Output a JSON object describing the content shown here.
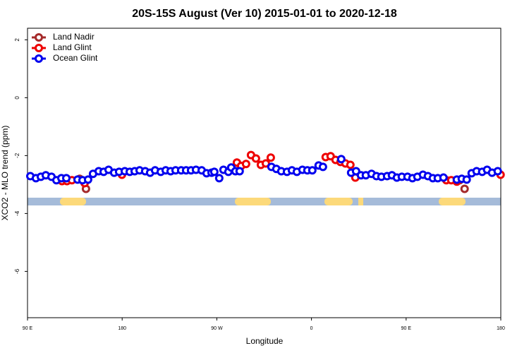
{
  "chart_data": {
    "type": "scatter",
    "title": "20S-15S August (Ver 10)   2015-01-01 to 2020-12-18",
    "x_label": "Longitude",
    "y_label": "XCO2 - MLO trend (ppm)",
    "xlim": [
      90,
      540
    ],
    "ylim": [
      -7.6,
      2.4
    ],
    "xticks": [
      {
        "value": 90,
        "label": "90 E"
      },
      180,
      {
        "value": 270,
        "label": "90 W"
      },
      {
        "value": 360,
        "label": "0"
      },
      {
        "value": 450,
        "label": "90 E"
      },
      {
        "value": 540,
        "label": "180"
      }
    ],
    "yticks": [
      2,
      0,
      -2,
      -4,
      -6
    ],
    "legend": "top-left",
    "series": [
      {
        "name": "Land Nadir",
        "color": "#a52a2a",
        "x": [
          139.6,
          145.6,
          500.9,
          505.6
        ],
        "values": [
          -2.8,
          -3.15,
          -2.85,
          -3.15
        ]
      },
      {
        "name": "Land Glint",
        "color": "#ee0000",
        "x": [
          122.8,
          127.5,
          132.2,
          144.3,
          179.8,
          289.1,
          293.1,
          297.8,
          302.5,
          307.2,
          311.9,
          316.6,
          321.3,
          373.5,
          378.2,
          382.9,
          387.6,
          392.3,
          397.0,
          401.7,
          488.2,
          492.9,
          498.2,
          539.8
        ],
        "values": [
          -2.88,
          -2.88,
          -2.85,
          -2.95,
          -2.66,
          -2.24,
          -2.36,
          -2.29,
          -1.98,
          -2.1,
          -2.32,
          -2.27,
          -2.07,
          -2.05,
          -2.02,
          -2.15,
          -2.22,
          -2.27,
          -2.32,
          -2.76,
          -2.85,
          -2.85,
          -2.9,
          -2.66
        ]
      },
      {
        "name": "Ocean Glint",
        "color": "#0000ee",
        "x": [
          92.7,
          98.0,
          102.7,
          107.4,
          112.8,
          117.5,
          122.2,
          126.9,
          137.6,
          142.3,
          147.6,
          152.3,
          157.7,
          162.4,
          167.1,
          172.4,
          177.1,
          182.5,
          187.2,
          191.9,
          196.6,
          201.9,
          206.6,
          211.3,
          216.7,
          221.4,
          226.1,
          230.8,
          236.1,
          240.8,
          245.5,
          250.2,
          255.6,
          260.3,
          265.0,
          267.6,
          272.3,
          276.3,
          281.0,
          283.7,
          287.7,
          291.7,
          321.9,
          326.6,
          331.3,
          336.7,
          341.4,
          346.1,
          351.4,
          356.1,
          360.8,
          366.8,
          370.9,
          388.3,
          397.7,
          402.4,
          407.1,
          411.7,
          417.1,
          421.8,
          426.5,
          431.9,
          436.5,
          441.2,
          445.9,
          451.3,
          456.0,
          460.7,
          466.0,
          470.7,
          475.4,
          480.1,
          485.5,
          498.2,
          502.9,
          507.6,
          512.3,
          517.0,
          522.3,
          527.0,
          531.7,
          537.1
        ],
        "values": [
          -2.71,
          -2.78,
          -2.73,
          -2.68,
          -2.73,
          -2.85,
          -2.78,
          -2.78,
          -2.83,
          -2.85,
          -2.83,
          -2.63,
          -2.54,
          -2.56,
          -2.49,
          -2.59,
          -2.56,
          -2.54,
          -2.56,
          -2.54,
          -2.51,
          -2.54,
          -2.59,
          -2.51,
          -2.56,
          -2.51,
          -2.54,
          -2.51,
          -2.51,
          -2.51,
          -2.51,
          -2.49,
          -2.51,
          -2.61,
          -2.59,
          -2.56,
          -2.78,
          -2.49,
          -2.56,
          -2.41,
          -2.54,
          -2.54,
          -2.39,
          -2.46,
          -2.54,
          -2.56,
          -2.51,
          -2.56,
          -2.49,
          -2.51,
          -2.51,
          -2.34,
          -2.39,
          -2.12,
          -2.59,
          -2.54,
          -2.68,
          -2.68,
          -2.63,
          -2.71,
          -2.73,
          -2.71,
          -2.68,
          -2.76,
          -2.73,
          -2.73,
          -2.78,
          -2.73,
          -2.66,
          -2.71,
          -2.78,
          -2.78,
          -2.76,
          -2.83,
          -2.8,
          -2.83,
          -2.61,
          -2.54,
          -2.56,
          -2.49,
          -2.59,
          -2.54
        ]
      }
    ]
  }
}
